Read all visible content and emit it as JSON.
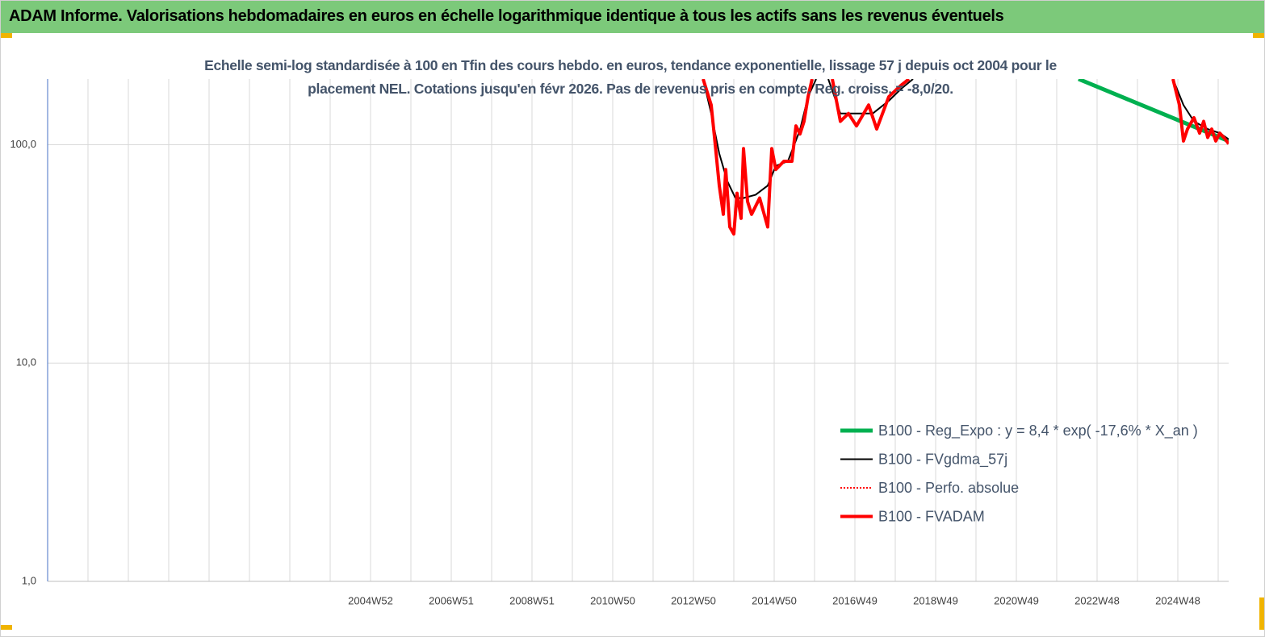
{
  "chart_data": {
    "type": "line",
    "title": "ADAM Informe. Valorisations hebdomadaires en euros en échelle logarithmique identique à tous les actifs sans les revenus éventuels",
    "subtitle": "Echelle semi-log standardisée à 100 en Tfin des cours hebdo. en euros, tendance exponentielle, lissage 57 j depuis oct 2004 pour le placement NEL. Cotations jusqu'en févr 2026. Pas de revenus pris en compte. Reg. croiss. = -8,0/20.",
    "log_y": true,
    "grid": true,
    "legend": "lower right",
    "xlim": [
      1997,
      2026.26
    ],
    "ylim": [
      1,
      200
    ],
    "yticks": [
      {
        "value": 1,
        "label": "1,0"
      },
      {
        "value": 10,
        "label": "10,0"
      },
      {
        "value": 100,
        "label": "100,0"
      }
    ],
    "xticks": [
      {
        "value": 1998,
        "label": null
      },
      {
        "value": 1999,
        "label": null
      },
      {
        "value": 2000,
        "label": null
      },
      {
        "value": 2001,
        "label": null
      },
      {
        "value": 2002,
        "label": null
      },
      {
        "value": 2003,
        "label": null
      },
      {
        "value": 2004,
        "label": null
      },
      {
        "value": 2005,
        "label": "2004W52"
      },
      {
        "value": 2006,
        "label": null
      },
      {
        "value": 2007,
        "label": "2006W51"
      },
      {
        "value": 2008,
        "label": null
      },
      {
        "value": 2009,
        "label": "2008W51"
      },
      {
        "value": 2010,
        "label": null
      },
      {
        "value": 2011,
        "label": "2010W50"
      },
      {
        "value": 2012,
        "label": null
      },
      {
        "value": 2013,
        "label": "2012W50"
      },
      {
        "value": 2014,
        "label": null
      },
      {
        "value": 2015,
        "label": "2014W50"
      },
      {
        "value": 2016,
        "label": null
      },
      {
        "value": 2017,
        "label": "2016W49"
      },
      {
        "value": 2018,
        "label": null
      },
      {
        "value": 2019,
        "label": "2018W49"
      },
      {
        "value": 2020,
        "label": null
      },
      {
        "value": 2021,
        "label": "2020W49"
      },
      {
        "value": 2022,
        "label": null
      },
      {
        "value": 2023,
        "label": "2022W48"
      },
      {
        "value": 2024,
        "label": null
      },
      {
        "value": 2025,
        "label": "2024W48"
      },
      {
        "value": 2026,
        "label": null
      }
    ],
    "series": [
      {
        "name": "B100 - Reg_Expo : y = 8,4 * exp( -17,6% *  X_an )",
        "color": "#00b050",
        "style": "solid",
        "x": [
          2022.54,
          2026.26
        ],
        "values": [
          200,
          104
        ]
      },
      {
        "name": "B100 - FVgdma_57j",
        "color": "#000000",
        "style": "solid",
        "x": [
          2013.24,
          2013.44,
          2013.64,
          2013.84,
          2014.04,
          2014.24,
          2014.54,
          2014.84,
          2015.04,
          2015.34,
          2015.64,
          2015.84,
          2016.04,
          null,
          2016.34,
          2016.64,
          2017.04,
          2017.44,
          2017.84,
          2018.14,
          2018.44,
          null,
          2024.88,
          2025.14,
          2025.4,
          2025.74,
          2026.04,
          2026.26
        ],
        "values": [
          200,
          139,
          91,
          68,
          57,
          57,
          59,
          65,
          80,
          84,
          117,
          166,
          200,
          null,
          200,
          139,
          139,
          139,
          159,
          180,
          200,
          null,
          200,
          152,
          128,
          118,
          113,
          106
        ]
      },
      {
        "name": "B100 - Perfo. absolue",
        "color": "#ff0000",
        "style": "dotted",
        "x": [],
        "values": []
      },
      {
        "name": "B100 - FVADAM",
        "color": "#ff0000",
        "style": "solid",
        "x": [
          2013.24,
          2013.44,
          2013.54,
          2013.64,
          2013.74,
          2013.8,
          2013.9,
          2014.0,
          2014.08,
          2014.18,
          2014.24,
          2014.34,
          2014.44,
          2014.64,
          2014.84,
          2014.94,
          2015.04,
          2015.24,
          2015.44,
          2015.54,
          2015.64,
          2015.74,
          2015.84,
          2015.94,
          null,
          2016.44,
          2016.64,
          2016.84,
          2017.04,
          2017.34,
          2017.54,
          2017.84,
          2018.14,
          2018.34,
          null,
          2024.88,
          2025.04,
          2025.14,
          2025.24,
          2025.4,
          2025.54,
          2025.64,
          2025.74,
          2025.84,
          2025.94,
          2026.04,
          2026.14,
          2026.26
        ],
        "values": [
          200,
          152,
          100,
          65,
          48,
          77,
          42,
          39,
          60,
          46,
          96,
          55,
          48,
          57,
          42,
          96,
          77,
          84,
          84,
          122,
          112,
          128,
          166,
          200,
          null,
          200,
          128,
          139,
          122,
          152,
          118,
          166,
          187,
          200,
          null,
          200,
          152,
          104,
          118,
          133,
          113,
          128,
          108,
          118,
          104,
          113,
          108,
          101
        ]
      }
    ]
  }
}
